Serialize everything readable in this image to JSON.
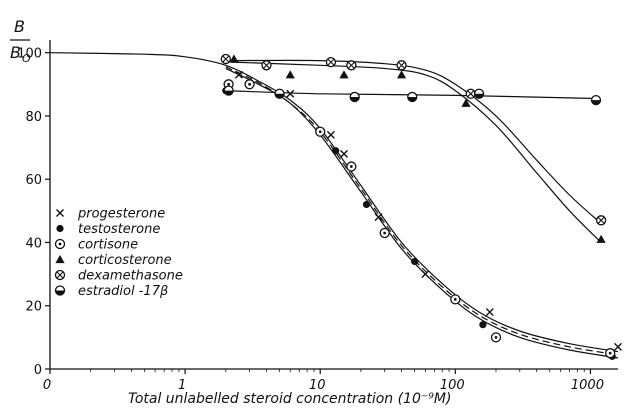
{
  "chart_data": {
    "type": "scatter",
    "title": "",
    "xlabel": "Total unlabelled steroid concentration  (10⁻⁹M)",
    "ylabel_top": "B",
    "ylabel_bottom": "B",
    "ylabel_sub": "O",
    "x_scale": "log",
    "x_ticks": [
      {
        "value": 0.1,
        "label": "0"
      },
      {
        "value": 1,
        "label": "1"
      },
      {
        "value": 10,
        "label": "10"
      },
      {
        "value": 100,
        "label": "100"
      },
      {
        "value": 1000,
        "label": "1000"
      }
    ],
    "y_ticks": [
      0,
      20,
      40,
      60,
      80,
      100
    ],
    "xlim": [
      0.1,
      1600
    ],
    "ylim": [
      0,
      104
    ],
    "grid": false,
    "legend_position": "lower-left",
    "series": [
      {
        "name": "progesterone",
        "marker": "x",
        "points": [
          [
            2.5,
            93
          ],
          [
            6,
            87
          ],
          [
            12,
            74
          ],
          [
            15,
            68
          ],
          [
            27,
            48
          ],
          [
            60,
            30
          ],
          [
            180,
            18
          ],
          [
            1600,
            7
          ]
        ]
      },
      {
        "name": "testosterone",
        "marker": "filled-circle",
        "points": [
          [
            2,
            88
          ],
          [
            13,
            69
          ],
          [
            22,
            52
          ],
          [
            50,
            34
          ],
          [
            160,
            14
          ],
          [
            1450,
            4
          ]
        ]
      },
      {
        "name": "cortisone",
        "marker": "dotted-circle",
        "points": [
          [
            2.1,
            90
          ],
          [
            3,
            90
          ],
          [
            10,
            75
          ],
          [
            17,
            64
          ],
          [
            30,
            43
          ],
          [
            100,
            22
          ],
          [
            200,
            10
          ],
          [
            1400,
            5
          ]
        ]
      },
      {
        "name": "corticosterone",
        "marker": "filled-triangle",
        "points": [
          [
            2.3,
            98
          ],
          [
            6,
            93
          ],
          [
            15,
            93
          ],
          [
            40,
            93
          ],
          [
            120,
            84
          ],
          [
            1200,
            41
          ]
        ]
      },
      {
        "name": "dexamethasone",
        "marker": "crossed-circle",
        "points": [
          [
            2,
            98
          ],
          [
            4,
            96
          ],
          [
            12,
            97
          ],
          [
            17,
            96
          ],
          [
            40,
            96
          ],
          [
            130,
            87
          ],
          [
            1200,
            47
          ]
        ]
      },
      {
        "name": "estradiol -17β",
        "marker": "half-filled-circle",
        "points": [
          [
            2.1,
            88
          ],
          [
            5,
            87
          ],
          [
            18,
            86
          ],
          [
            48,
            86
          ],
          [
            150,
            87
          ],
          [
            1100,
            85
          ]
        ]
      }
    ],
    "curves": [
      {
        "style": "solid",
        "points": [
          [
            0.1,
            100
          ],
          [
            0.5,
            99.5
          ],
          [
            1,
            98.7
          ],
          [
            2,
            96
          ],
          [
            3.5,
            91
          ],
          [
            6,
            85
          ],
          [
            10,
            76
          ],
          [
            20,
            58
          ],
          [
            40,
            40
          ],
          [
            80,
            27
          ],
          [
            150,
            18
          ],
          [
            300,
            12
          ],
          [
            700,
            8
          ],
          [
            1600,
            5.5
          ]
        ]
      },
      {
        "style": "solid",
        "points": [
          [
            2,
            95
          ],
          [
            3.5,
            90
          ],
          [
            6,
            84
          ],
          [
            10,
            74
          ],
          [
            20,
            56
          ],
          [
            40,
            38
          ],
          [
            80,
            25
          ],
          [
            150,
            16
          ],
          [
            300,
            10
          ],
          [
            700,
            6
          ],
          [
            1600,
            3.5
          ]
        ]
      },
      {
        "style": "dashed",
        "points": [
          [
            2,
            95.5
          ],
          [
            3.5,
            90.5
          ],
          [
            6,
            84
          ],
          [
            10,
            75
          ],
          [
            20,
            57
          ],
          [
            40,
            39
          ],
          [
            80,
            26
          ],
          [
            150,
            17
          ],
          [
            300,
            11
          ],
          [
            700,
            7
          ],
          [
            1600,
            4.5
          ]
        ]
      },
      {
        "style": "solid",
        "points": [
          [
            2.2,
            97.5
          ],
          [
            10,
            97.5
          ],
          [
            30,
            96.5
          ],
          [
            60,
            94.5
          ],
          [
            100,
            90
          ],
          [
            200,
            80
          ],
          [
            400,
            66
          ],
          [
            700,
            55
          ],
          [
            1200,
            46
          ]
        ]
      },
      {
        "style": "solid",
        "points": [
          [
            2.2,
            97
          ],
          [
            10,
            96
          ],
          [
            30,
            95
          ],
          [
            60,
            93
          ],
          [
            100,
            88
          ],
          [
            200,
            77
          ],
          [
            400,
            62
          ],
          [
            700,
            50
          ],
          [
            1200,
            40
          ]
        ]
      },
      {
        "style": "solid",
        "points": [
          [
            2,
            88
          ],
          [
            10,
            87
          ],
          [
            100,
            86.5
          ],
          [
            1100,
            85.5
          ]
        ]
      }
    ]
  }
}
